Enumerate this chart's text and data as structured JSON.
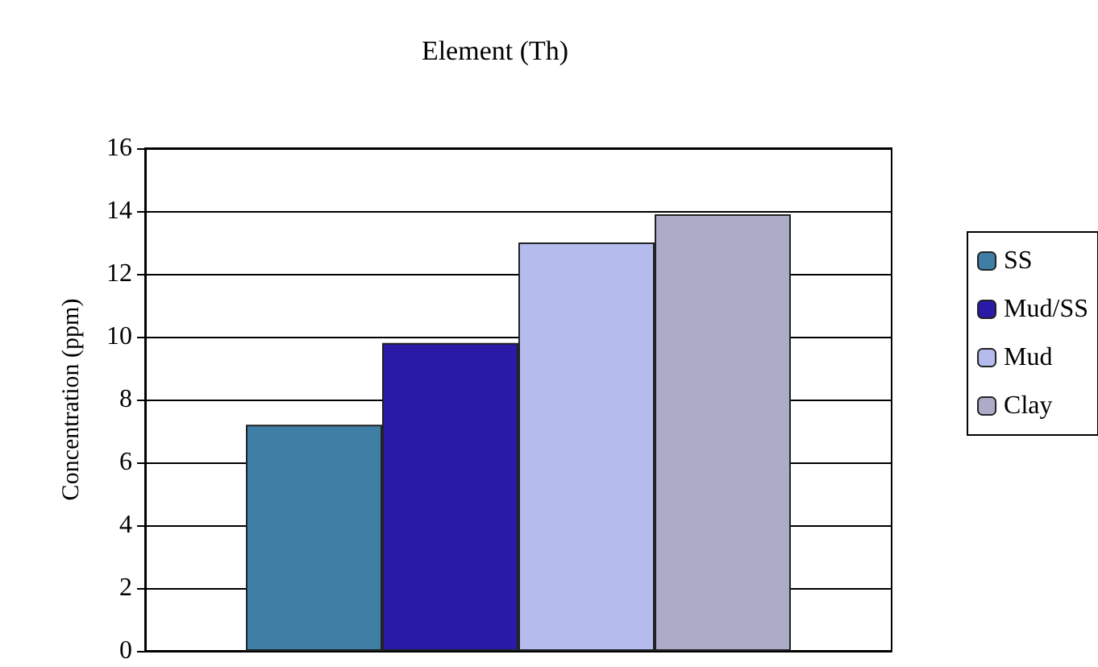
{
  "chart_data": {
    "type": "bar",
    "title": "Element (Th)",
    "ylabel": "Concentration (ppm)",
    "categories": [
      null
    ],
    "series": [
      {
        "name": "SS",
        "color": "#3f7fa6",
        "values": [
          7.2
        ]
      },
      {
        "name": "Mud/SS",
        "color": "#2a1aa8",
        "values": [
          9.8
        ]
      },
      {
        "name": "Mud",
        "color": "#b4bcee",
        "values": [
          13.0
        ]
      },
      {
        "name": "Clay",
        "color": "#acacc8",
        "values": [
          13.9
        ]
      }
    ],
    "ylim": [
      0,
      16
    ],
    "yticks": [
      0,
      2,
      4,
      6,
      8,
      10,
      12,
      14,
      16
    ],
    "grid": "y",
    "legend": "right"
  }
}
